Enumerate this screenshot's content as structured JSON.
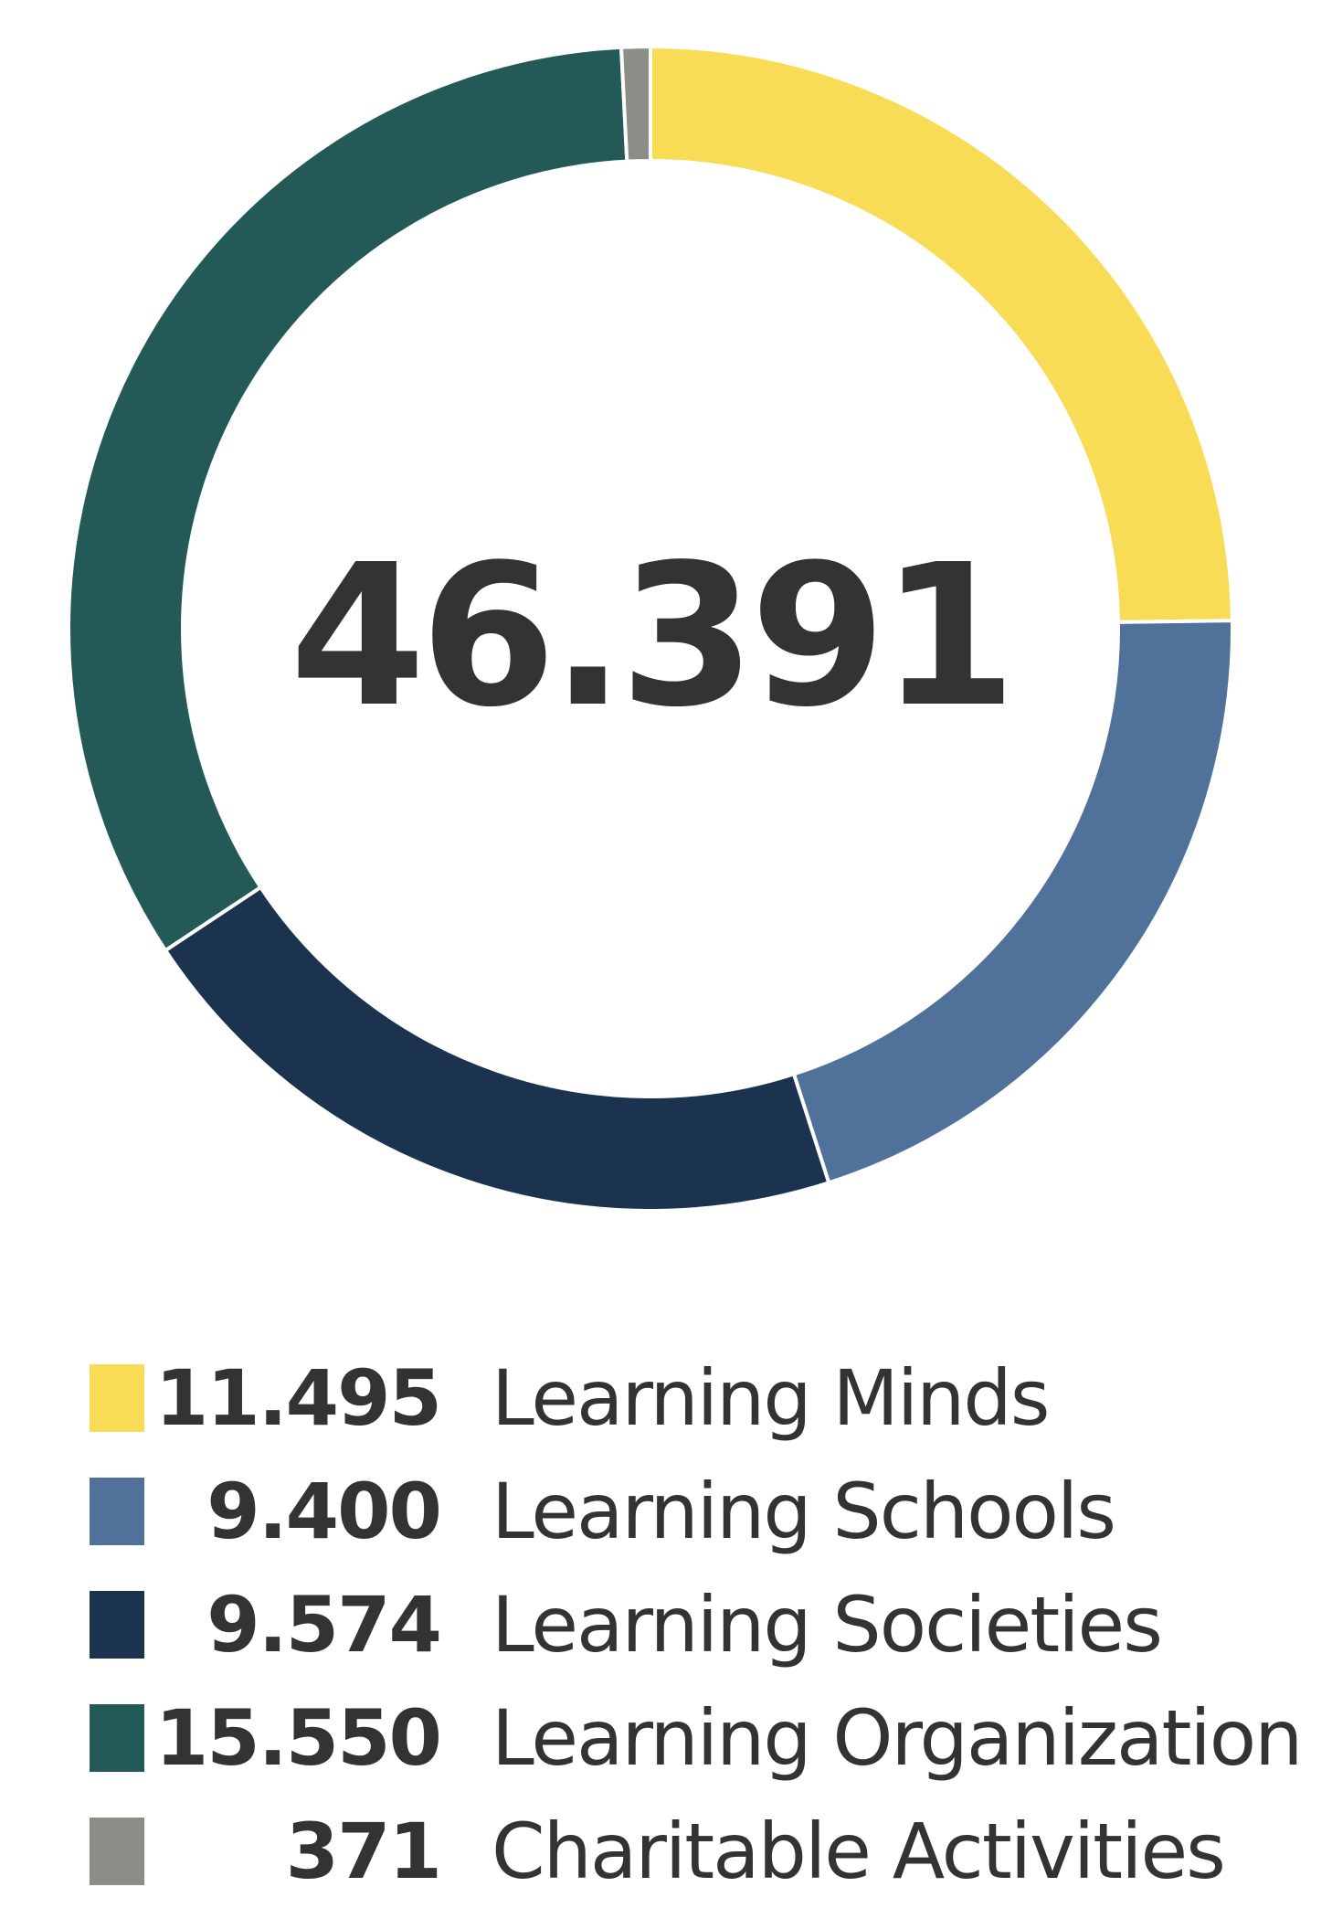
{
  "chart_data": {
    "type": "pie",
    "title": "",
    "center_total": "46.391",
    "segments": [
      {
        "label": "Learning Minds",
        "value": 11495,
        "display_value": "11.495",
        "color": "#F9DC56"
      },
      {
        "label": "Learning Schools",
        "value": 9400,
        "display_value": "9.400",
        "color": "#50719A"
      },
      {
        "label": "Learning Societies",
        "value": 9574,
        "display_value": "9.574",
        "color": "#1B334F"
      },
      {
        "label": "Learning Organization",
        "value": 15550,
        "display_value": "15.550",
        "color": "#235A57"
      },
      {
        "label": "Charitable Activities",
        "value": 371,
        "display_value": "371",
        "color": "#8C8D87"
      }
    ],
    "legend_position": "bottom"
  }
}
